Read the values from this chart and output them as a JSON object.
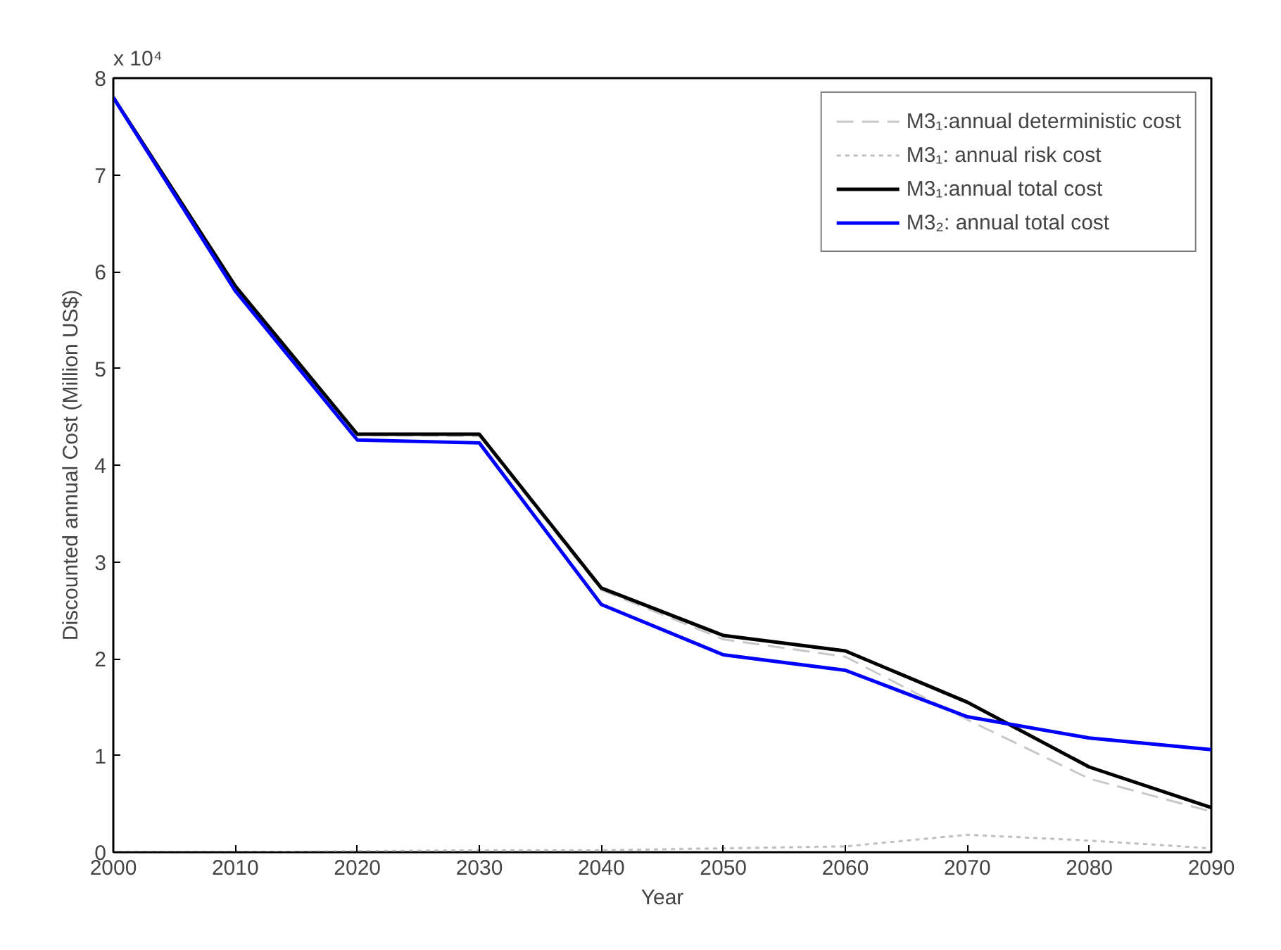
{
  "chart_data": {
    "type": "line",
    "xlabel": "Year",
    "ylabel": "Discounted annual Cost (Million US$)",
    "annotations": [
      "x 10⁴"
    ],
    "x": [
      2000,
      2010,
      2020,
      2030,
      2040,
      2050,
      2060,
      2070,
      2080,
      2090
    ],
    "series": [
      {
        "name": "M3₁:annual deterministic cost",
        "color": "#c8c8c8",
        "line_style": "dashed",
        "values": [
          7.8,
          5.85,
          4.31,
          4.3,
          2.71,
          2.2,
          2.02,
          1.37,
          0.76,
          0.42
        ]
      },
      {
        "name": "M3₁: annual risk cost",
        "color": "#c0c0c0",
        "line_style": "dotted",
        "values": [
          0,
          0,
          0.01,
          0.02,
          0.02,
          0.04,
          0.06,
          0.18,
          0.12,
          0.04
        ]
      },
      {
        "name": "M3₁:annual total cost",
        "color": "#000000",
        "line_style": "solid",
        "values": [
          7.8,
          5.85,
          4.32,
          4.32,
          2.73,
          2.24,
          2.08,
          1.55,
          0.88,
          0.46
        ]
      },
      {
        "name": "M3₂: annual total cost",
        "color": "#0000ff",
        "line_style": "solid",
        "values": [
          7.8,
          5.8,
          4.26,
          4.23,
          2.56,
          2.04,
          1.88,
          1.4,
          1.18,
          1.06
        ]
      }
    ],
    "xlim": [
      2000,
      2090
    ],
    "ylim": [
      0,
      8
    ],
    "xticks": [
      2000,
      2010,
      2020,
      2030,
      2040,
      2050,
      2060,
      2070,
      2080,
      2090
    ],
    "yticks": [
      0,
      1,
      2,
      3,
      4,
      5,
      6,
      7,
      8
    ],
    "legend": "top right",
    "grid": false
  }
}
